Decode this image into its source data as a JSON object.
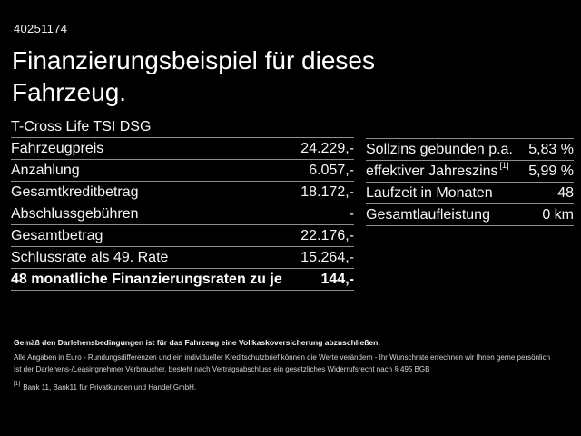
{
  "header": {
    "listing_id": "40251174",
    "title": "Finanzierungsbeispiel für dieses Fahrzeug.",
    "vehicle_model": "T-Cross Life TSI DSG"
  },
  "finance_table": {
    "rows": [
      {
        "label": "Fahrzeugpreis",
        "value": "24.229,-"
      },
      {
        "label": "Anzahlung",
        "value": "6.057,-"
      },
      {
        "label": "Gesamtkreditbetrag",
        "value": "18.172,-"
      },
      {
        "label": "Abschlussgebühren",
        "value": "-"
      },
      {
        "label": "Gesamtbetrag",
        "value": "22.176,-"
      },
      {
        "label": "Schlussrate als 49. Rate",
        "value": "15.264,-"
      },
      {
        "label": "48 monatliche Finanzierungsraten zu je",
        "value": "144,-"
      }
    ]
  },
  "conditions_table": {
    "rows": [
      {
        "label": "Sollzins gebunden p.a.",
        "value": "5,83 %"
      },
      {
        "label": "effektiver Jahreszins",
        "footnote_marker": "[1]",
        "value": "5,99 %"
      },
      {
        "label": "Laufzeit in Monaten",
        "value": "48"
      },
      {
        "label": "Gesamtlaufleistung",
        "value": "0 km"
      }
    ]
  },
  "footer": {
    "insurance_note": "Gemäß den Darlehensbedingungen ist für das Fahrzeug eine Vollkaskoversicherung abzuschließen.",
    "disclaimer_line1": "Alle Angaben in Euro - Rundungsdifferenzen und ein individueller Kreditschutzbrief können die Werte verändern - Ihr Wunschrate errechnen wir Ihnen gerne persönlich",
    "disclaimer_line2": "Ist der Darlehens-/Leasingnehmer Verbraucher, besteht nach Vertragsabschluss ein gesetzliches Widerrufsrecht nach § 495 BGB",
    "footnote_marker": "[1]",
    "footnote_text": "Bank 11, Bank11 für Privatkunden und Handel GmbH."
  },
  "colors": {
    "background": "#000000",
    "text": "#ffffff",
    "divider": "#8f8f8f"
  }
}
